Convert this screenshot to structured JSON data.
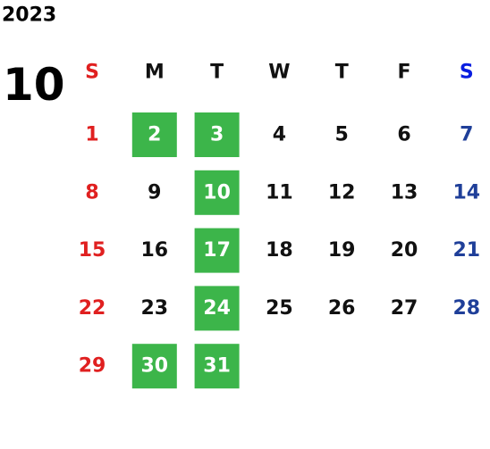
{
  "header": {
    "year": "2023",
    "month": "10"
  },
  "weekdays": [
    "S",
    "M",
    "T",
    "W",
    "T",
    "F",
    "S"
  ],
  "colors": {
    "sunday": "#e02020",
    "saturday_header": "#0a1ee0",
    "saturday": "#1f3f99",
    "weekday": "#111111",
    "highlight": "#3cb54a",
    "highlight_text": "#ffffff"
  },
  "weeks": [
    [
      {
        "day": 1
      },
      {
        "day": 2,
        "highlight": true
      },
      {
        "day": 3,
        "highlight": true
      },
      {
        "day": 4
      },
      {
        "day": 5
      },
      {
        "day": 6
      },
      {
        "day": 7
      }
    ],
    [
      {
        "day": 8
      },
      {
        "day": 9
      },
      {
        "day": 10,
        "highlight": true
      },
      {
        "day": 11
      },
      {
        "day": 12
      },
      {
        "day": 13
      },
      {
        "day": 14
      }
    ],
    [
      {
        "day": 15
      },
      {
        "day": 16
      },
      {
        "day": 17,
        "highlight": true
      },
      {
        "day": 18
      },
      {
        "day": 19
      },
      {
        "day": 20
      },
      {
        "day": 21
      }
    ],
    [
      {
        "day": 22
      },
      {
        "day": 23
      },
      {
        "day": 24,
        "highlight": true
      },
      {
        "day": 25
      },
      {
        "day": 26
      },
      {
        "day": 27
      },
      {
        "day": 28
      }
    ],
    [
      {
        "day": 29
      },
      {
        "day": 30,
        "highlight": true
      },
      {
        "day": 31,
        "highlight": true
      }
    ]
  ]
}
